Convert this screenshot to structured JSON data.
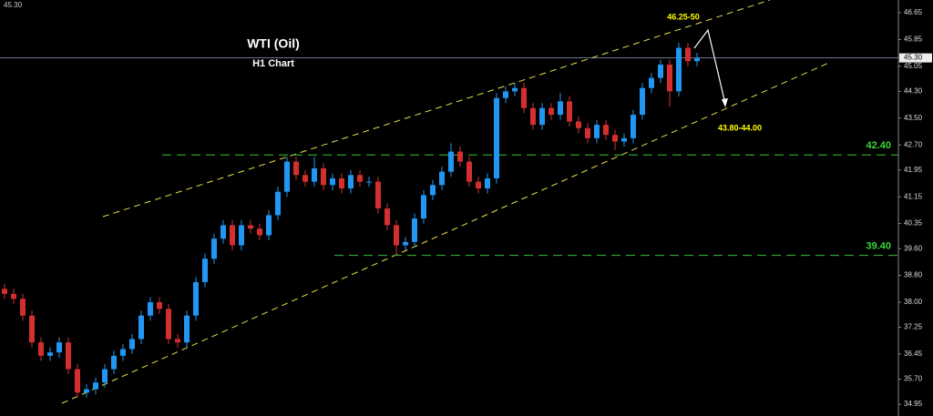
{
  "chart_data": {
    "type": "candlestick",
    "title": "WTI (Oil)",
    "subtitle": "H1 Chart",
    "up_color": "#2196f3",
    "down_color": "#d32f2f",
    "ylim": [
      34.6,
      47.03
    ],
    "yticks": [
      {
        "value": 46.65,
        "label": "46.65"
      },
      {
        "value": 45.85,
        "label": "45.85"
      },
      {
        "value": 45.05,
        "label": "45.05"
      },
      {
        "value": 44.3,
        "label": "44.30"
      },
      {
        "value": 43.5,
        "label": "43.50"
      },
      {
        "value": 42.7,
        "label": "42.70"
      },
      {
        "value": 41.95,
        "label": "41.95"
      },
      {
        "value": 41.15,
        "label": "41.15"
      },
      {
        "value": 40.35,
        "label": "40.35"
      },
      {
        "value": 39.6,
        "label": "39.60"
      },
      {
        "value": 38.8,
        "label": "38.80"
      },
      {
        "value": 38.0,
        "label": "38.00"
      },
      {
        "value": 37.25,
        "label": "37.25"
      },
      {
        "value": 36.45,
        "label": "36.45"
      },
      {
        "value": 35.7,
        "label": "35.70"
      },
      {
        "value": 34.95,
        "label": "34.95"
      }
    ],
    "current_price": {
      "value": 45.3,
      "label": "45.30"
    },
    "levels": [
      {
        "value": 42.4,
        "label": "42.40"
      },
      {
        "value": 39.4,
        "label": "39.40"
      }
    ],
    "annotations": [
      "46.25-50",
      "43.80-44.00"
    ],
    "open": [
      38.4,
      38.25,
      38.1,
      37.6,
      36.8,
      36.4,
      36.5,
      36.8,
      36.0,
      35.3,
      35.4,
      35.6,
      36.0,
      36.4,
      36.6,
      36.9,
      37.6,
      38.0,
      37.8,
      36.9,
      36.8,
      37.6,
      38.6,
      39.3,
      39.9,
      40.3,
      39.7,
      40.3,
      40.2,
      40.0,
      40.6,
      41.3,
      42.2,
      41.8,
      41.6,
      42.0,
      41.5,
      41.7,
      41.4,
      41.8,
      41.6,
      41.6,
      40.8,
      40.3,
      39.7,
      39.8,
      40.5,
      41.2,
      41.5,
      41.9,
      42.5,
      42.2,
      41.6,
      41.4,
      41.7,
      44.1,
      44.3,
      44.4,
      43.8,
      43.3,
      43.8,
      43.6,
      44.0,
      43.4,
      43.2,
      42.9,
      43.3,
      43.0,
      42.8,
      42.9,
      43.6,
      44.4,
      44.7,
      45.1,
      44.3,
      45.6,
      45.2
    ],
    "high": [
      38.55,
      38.4,
      38.25,
      37.75,
      36.95,
      36.65,
      36.95,
      36.95,
      36.15,
      35.55,
      35.75,
      36.15,
      36.55,
      36.75,
      37.05,
      37.75,
      38.15,
      38.15,
      37.95,
      37.05,
      37.75,
      38.75,
      39.45,
      40.05,
      40.45,
      40.45,
      40.45,
      40.45,
      40.35,
      40.75,
      41.45,
      42.35,
      42.35,
      41.95,
      42.35,
      42.15,
      41.85,
      41.85,
      41.95,
      41.95,
      41.75,
      41.75,
      40.95,
      40.45,
      39.95,
      40.65,
      41.35,
      41.65,
      42.05,
      42.75,
      42.65,
      42.35,
      41.75,
      41.85,
      44.25,
      44.45,
      44.55,
      44.55,
      43.95,
      43.95,
      43.95,
      44.25,
      44.15,
      43.55,
      43.35,
      43.45,
      43.45,
      43.15,
      43.05,
      43.75,
      44.55,
      44.85,
      45.25,
      45.25,
      45.75,
      45.75,
      45.45
    ],
    "low": [
      38.1,
      37.95,
      37.45,
      36.65,
      36.25,
      36.25,
      36.35,
      35.85,
      35.15,
      35.15,
      35.25,
      35.45,
      35.85,
      36.25,
      36.45,
      36.75,
      37.45,
      37.65,
      36.75,
      36.65,
      36.65,
      37.45,
      38.45,
      39.15,
      39.75,
      39.55,
      39.55,
      40.05,
      39.85,
      39.85,
      40.45,
      41.15,
      41.65,
      41.45,
      41.45,
      41.35,
      41.35,
      41.25,
      41.25,
      41.45,
      41.45,
      40.65,
      40.15,
      39.4,
      39.55,
      39.65,
      40.35,
      41.05,
      41.35,
      41.75,
      42.05,
      41.45,
      41.25,
      41.25,
      41.55,
      43.95,
      44.15,
      43.65,
      43.15,
      43.15,
      43.45,
      43.45,
      43.25,
      43.05,
      42.75,
      42.75,
      42.85,
      42.55,
      42.65,
      42.75,
      43.45,
      44.25,
      44.55,
      43.85,
      44.15,
      45.05,
      45.05
    ],
    "close": [
      38.25,
      38.1,
      37.6,
      36.8,
      36.4,
      36.5,
      36.8,
      36.0,
      35.3,
      35.4,
      35.6,
      36.0,
      36.4,
      36.6,
      36.9,
      37.6,
      38.0,
      37.8,
      36.9,
      36.8,
      37.6,
      38.6,
      39.3,
      39.9,
      40.3,
      39.7,
      40.3,
      40.2,
      40.0,
      40.6,
      41.3,
      42.2,
      41.8,
      41.6,
      42.0,
      41.5,
      41.7,
      41.4,
      41.8,
      41.6,
      41.6,
      40.8,
      40.3,
      39.7,
      39.8,
      40.5,
      41.2,
      41.5,
      41.9,
      42.5,
      42.2,
      41.6,
      41.4,
      41.7,
      44.1,
      44.3,
      44.4,
      43.8,
      43.3,
      43.8,
      43.6,
      44.0,
      43.4,
      43.2,
      42.9,
      43.3,
      43.0,
      42.8,
      42.9,
      43.6,
      44.4,
      44.7,
      45.1,
      44.3,
      45.6,
      45.2,
      45.3
    ]
  }
}
